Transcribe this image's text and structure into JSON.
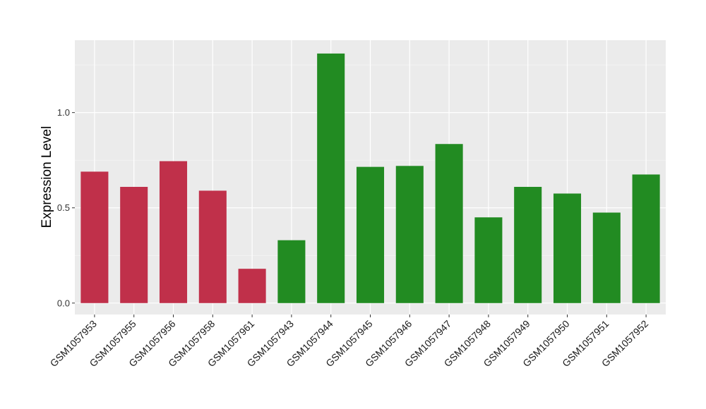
{
  "chart_data": {
    "type": "bar",
    "title": "",
    "xlabel": "",
    "ylabel": "Expression Level",
    "ylim": [
      -0.06,
      1.38
    ],
    "yticks": [
      0.0,
      0.5,
      1.0
    ],
    "ytick_labels": [
      "0.0",
      "0.5",
      "1.0"
    ],
    "grid": true,
    "categories": [
      "GSM1057953",
      "GSM1057955",
      "GSM1057956",
      "GSM1057958",
      "GSM1057961",
      "GSM1057943",
      "GSM1057944",
      "GSM1057945",
      "GSM1057946",
      "GSM1057947",
      "GSM1057948",
      "GSM1057949",
      "GSM1057950",
      "GSM1057951",
      "GSM1057952"
    ],
    "values": [
      0.69,
      0.61,
      0.745,
      0.59,
      0.18,
      0.33,
      1.31,
      0.715,
      0.72,
      0.835,
      0.45,
      0.61,
      0.575,
      0.475,
      0.675
    ],
    "group": [
      1,
      1,
      1,
      1,
      1,
      2,
      2,
      2,
      2,
      2,
      2,
      2,
      2,
      2,
      2
    ],
    "colors": {
      "group1": "#C0304A",
      "group2": "#228B22",
      "panel": "#EBEBEB",
      "grid_major": "#FFFFFF",
      "grid_minor": "#F5F5F5"
    }
  }
}
